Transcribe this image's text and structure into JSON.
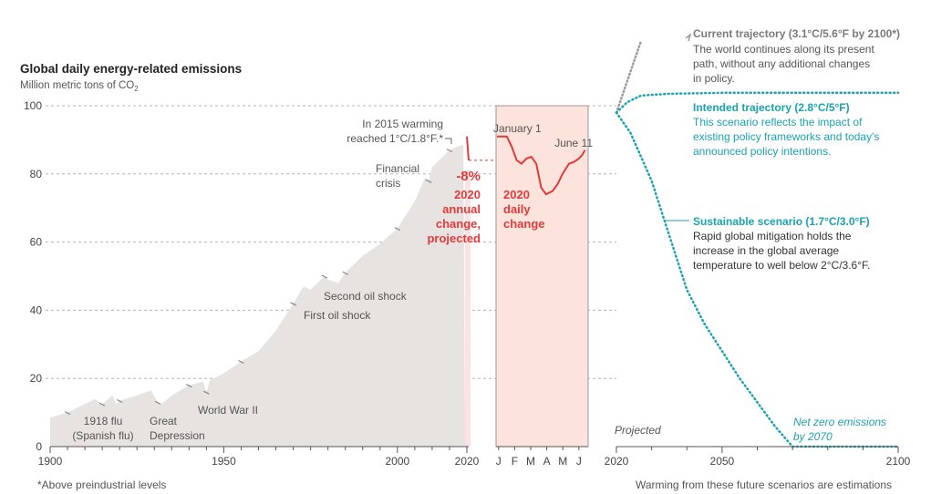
{
  "title": "Global daily energy-related emissions",
  "subtitle": "Million metric tons of CO",
  "subtitle_sub": "2",
  "footnote_left": "*Above preindustrial levels",
  "footnote_right": "Warming from these future scenarios are estimations",
  "colors": {
    "area": "#e6e3e1",
    "area_edge": "#8a8480",
    "daily_fill": "#fce4dc",
    "red": "#e23a3a",
    "grey_dots": "#9a9a9a",
    "teal": "#1aa3b0",
    "text": "#444444"
  },
  "chart_data": [
    {
      "type": "area",
      "title": "Global daily energy-related emissions",
      "ylabel": "Million metric tons of CO2",
      "xlim": [
        1900,
        2020
      ],
      "ylim": [
        0,
        100
      ],
      "xticks": [
        "1900",
        "1950",
        "2000",
        "2020"
      ],
      "yticks": [
        "0",
        "20",
        "40",
        "60",
        "80",
        "100"
      ],
      "x": [
        1900,
        1905,
        1910,
        1913,
        1915,
        1918,
        1919,
        1920,
        1925,
        1929,
        1931,
        1932,
        1935,
        1940,
        1942,
        1944,
        1945,
        1946,
        1950,
        1955,
        1960,
        1965,
        1970,
        1973,
        1975,
        1979,
        1980,
        1983,
        1985,
        1990,
        1995,
        2000,
        2005,
        2008,
        2009,
        2010,
        2013,
        2015,
        2017,
        2019
      ],
      "y": [
        8.5,
        10,
        12.5,
        14,
        12.5,
        15,
        12.5,
        13.5,
        15,
        16.5,
        13,
        12.5,
        15,
        18,
        18.5,
        19,
        16,
        19.5,
        21.5,
        25,
        28,
        34,
        42,
        47,
        46,
        50,
        49,
        48,
        51,
        56,
        59.5,
        64,
        72,
        79,
        78,
        82,
        85,
        87,
        88,
        88.5
      ],
      "annotations": [
        {
          "text": "In 2015 warming",
          "x": 2015
        },
        {
          "text": "reached 1°C/1.8°F.*",
          "x": 2015
        },
        {
          "text": "Financial",
          "x": 2009
        },
        {
          "text": "crisis",
          "x": 2009
        },
        {
          "text": "Second oil shock",
          "x": 1980
        },
        {
          "text": "First oil shock",
          "x": 1974
        },
        {
          "text": "World War II",
          "x": 1945
        },
        {
          "text": "1918 flu",
          "x": 1918
        },
        {
          "text": "(Spanish flu)",
          "x": 1918
        },
        {
          "text": "Great",
          "x": 1932
        },
        {
          "text": "Depression",
          "x": 1932
        }
      ],
      "projected_2020": {
        "value": -8,
        "label": "-8%",
        "lines": [
          "2020",
          "annual",
          "change,",
          "projected"
        ]
      }
    },
    {
      "type": "line",
      "title": "2020 daily change",
      "title_lines": [
        "2020",
        "daily",
        "change"
      ],
      "categories": [
        "J",
        "F",
        "M",
        "A",
        "M",
        "J"
      ],
      "start_label": "January 1",
      "end_label": "June 11",
      "x": [
        0,
        0.6,
        0.9,
        1.2,
        1.5,
        1.8,
        2.1,
        2.4,
        2.7,
        3.0,
        3.4,
        3.7,
        4.0,
        4.4,
        4.7,
        5.0,
        5.2,
        5.37
      ],
      "y": [
        91,
        91,
        88,
        84,
        83,
        84.5,
        85,
        83,
        76,
        74,
        75,
        77,
        80,
        83,
        83.5,
        84.5,
        85.5,
        87
      ],
      "ylim": [
        0,
        100
      ]
    },
    {
      "type": "line",
      "title": "Projected",
      "xlim": [
        2020,
        2100
      ],
      "xticks": [
        "2020",
        "2050",
        "2100"
      ],
      "series": [
        {
          "name": "Current trajectory (3.1°C/5.6°F by 2100*)",
          "description": [
            "The world continues along its present",
            "path, without any additional changes",
            "in policy."
          ],
          "x": [
            2020,
            2027
          ],
          "y": [
            98,
            119
          ]
        },
        {
          "name": "Intended trajectory (2.8°C/5°F)",
          "description": [
            "This scenario reflects the impact of",
            "existing policy frameworks and today's",
            "announced policy intentions."
          ],
          "x": [
            2020,
            2023,
            2027,
            2035,
            2050,
            2100
          ],
          "y": [
            98,
            101,
            103,
            103.5,
            103.8,
            103.8
          ]
        },
        {
          "name": "Sustainable scenario (1.7°C/3.0°F)",
          "description": [
            "Rapid global mitigation holds the",
            "increase in the global average",
            "temperature to well below 2°C/3.6°F."
          ],
          "x": [
            2020,
            2024,
            2030,
            2035,
            2040,
            2045,
            2050,
            2055,
            2060,
            2065,
            2070,
            2080,
            2090,
            2100
          ],
          "y": [
            98,
            92,
            78,
            62,
            46,
            36,
            28,
            20,
            13,
            6,
            0,
            0,
            0,
            0
          ]
        }
      ],
      "annotations": [
        {
          "text": "Net zero emissions",
          "x": 2070
        },
        {
          "text": "by 2070",
          "x": 2070
        }
      ]
    }
  ]
}
